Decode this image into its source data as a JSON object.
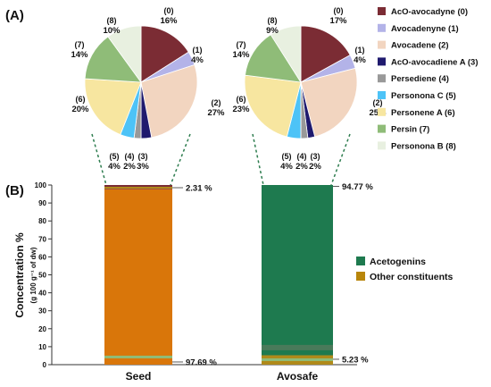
{
  "panel_labels": {
    "a": "(A)",
    "b": "(B)"
  },
  "colors": {
    "acetogenins": "#1e7a4f",
    "other": "#d9760a",
    "other_legend": "#b8860b",
    "dash": "#2e7d4f"
  },
  "legend_bottom": [
    {
      "label": "Acetogenins",
      "color": "#1e7a4f"
    },
    {
      "label": "Other constituents",
      "color": "#b8860b"
    }
  ],
  "chart_data": [
    {
      "type": "pie",
      "name": "Seed",
      "labels": [
        "AcO-avocadyne (0)",
        "Avocadenyne (1)",
        "Avocadene (2)",
        "AcO-avocadiene A (3)",
        "Persediene (4)",
        "Personona C (5)",
        "Personene A (6)",
        "Persin (7)",
        "Personona B (8)"
      ],
      "values": [
        16,
        4,
        27,
        3,
        2,
        4,
        20,
        14,
        10
      ],
      "slice_labels": [
        [
          "(0)",
          "16%"
        ],
        [
          "(1)",
          "4%"
        ],
        [
          "(2)",
          "27%"
        ],
        [
          "(3)",
          "3%"
        ],
        [
          "(4)",
          "2%"
        ],
        [
          "(5)",
          "4%"
        ],
        [
          "(6)",
          "20%"
        ],
        [
          "(7)",
          "14%"
        ],
        [
          "(8)",
          "10%"
        ]
      ],
      "colors": [
        "#7b2c34",
        "#b3b3e8",
        "#f2d5c0",
        "#1f1a6e",
        "#999999",
        "#4dc3f7",
        "#f7e6a0",
        "#8fbc78",
        "#e8f0e0"
      ]
    },
    {
      "type": "pie",
      "name": "Avosafe",
      "labels": [
        "AcO-avocadyne (0)",
        "Avocadenyne (1)",
        "Avocadene (2)",
        "AcO-avocadiene A (3)",
        "Persediene (4)",
        "Personona C (5)",
        "Personene A (6)",
        "Persin (7)",
        "Personona B (8)"
      ],
      "values": [
        17,
        4,
        25,
        2,
        2,
        4,
        23,
        14,
        9
      ],
      "slice_labels": [
        [
          "(0)",
          "17%"
        ],
        [
          "(1)",
          "4%"
        ],
        [
          "(2)",
          "25%"
        ],
        [
          "(3)",
          "2%"
        ],
        [
          "(4)",
          "2%"
        ],
        [
          "(5)",
          "4%"
        ],
        [
          "(6)",
          "23%"
        ],
        [
          "(7)",
          "14%"
        ],
        [
          "(8)",
          "9%"
        ]
      ],
      "colors": [
        "#7b2c34",
        "#b3b3e8",
        "#f2d5c0",
        "#1f1a6e",
        "#999999",
        "#4dc3f7",
        "#f7e6a0",
        "#8fbc78",
        "#e8f0e0"
      ]
    },
    {
      "type": "bar",
      "stacked": true,
      "categories": [
        "Seed",
        "Avosafe"
      ],
      "series": [
        {
          "name": "Other constituents",
          "values": [
            97.69,
            5.23
          ]
        },
        {
          "name": "Acetogenins",
          "values": [
            2.31,
            94.77
          ]
        }
      ],
      "ylabel": "Concentration %",
      "ylabel_sub": "(g 100 g⁻¹ of dw)",
      "ylim": [
        0,
        100
      ],
      "yticks": [
        "0",
        "10",
        "20",
        "30",
        "40",
        "50",
        "60",
        "70",
        "80",
        "90",
        "100"
      ],
      "annotations": {
        "seed_top": "2.31 %",
        "seed_bottom": "97.69 %",
        "avosafe_top": "94.77 %",
        "avosafe_bottom": "5.23 %"
      }
    }
  ]
}
